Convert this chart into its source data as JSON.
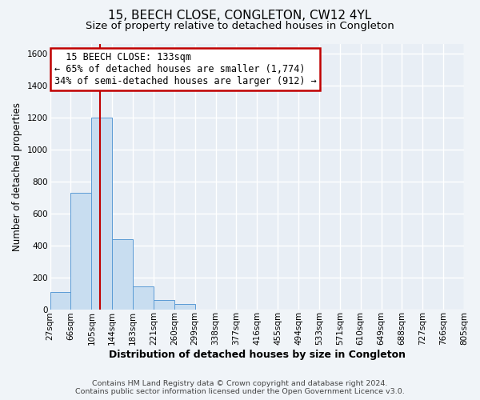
{
  "title": "15, BEECH CLOSE, CONGLETON, CW12 4YL",
  "subtitle": "Size of property relative to detached houses in Congleton",
  "xlabel": "Distribution of detached houses by size in Congleton",
  "ylabel": "Number of detached properties",
  "bin_labels": [
    "27sqm",
    "66sqm",
    "105sqm",
    "144sqm",
    "183sqm",
    "221sqm",
    "260sqm",
    "299sqm",
    "338sqm",
    "377sqm",
    "416sqm",
    "455sqm",
    "494sqm",
    "533sqm",
    "571sqm",
    "610sqm",
    "649sqm",
    "688sqm",
    "727sqm",
    "766sqm",
    "805sqm"
  ],
  "bar_heights": [
    110,
    730,
    1200,
    440,
    145,
    60,
    35,
    0,
    0,
    0,
    0,
    0,
    0,
    0,
    0,
    0,
    0,
    0,
    0,
    0
  ],
  "bar_color": "#c8ddf0",
  "bar_edge_color": "#5b9bd5",
  "bar_width": 1.0,
  "ylim": [
    0,
    1660
  ],
  "yticks": [
    0,
    200,
    400,
    600,
    800,
    1000,
    1200,
    1400,
    1600
  ],
  "property_line_x": 2.42,
  "property_line_color": "#c00000",
  "annotation_title": "15 BEECH CLOSE: 133sqm",
  "annotation_line1": "← 65% of detached houses are smaller (1,774)",
  "annotation_line2": "34% of semi-detached houses are larger (912) →",
  "annotation_box_color": "#ffffff",
  "annotation_box_edge": "#c00000",
  "footer_line1": "Contains HM Land Registry data © Crown copyright and database right 2024.",
  "footer_line2": "Contains public sector information licensed under the Open Government Licence v3.0.",
  "background_color": "#f0f4f8",
  "plot_bg_color": "#e8eef5",
  "grid_color": "#ffffff",
  "title_fontsize": 11,
  "subtitle_fontsize": 9.5,
  "xlabel_fontsize": 9,
  "ylabel_fontsize": 8.5,
  "tick_fontsize": 7.5,
  "annotation_fontsize": 8.5,
  "footer_fontsize": 6.8
}
